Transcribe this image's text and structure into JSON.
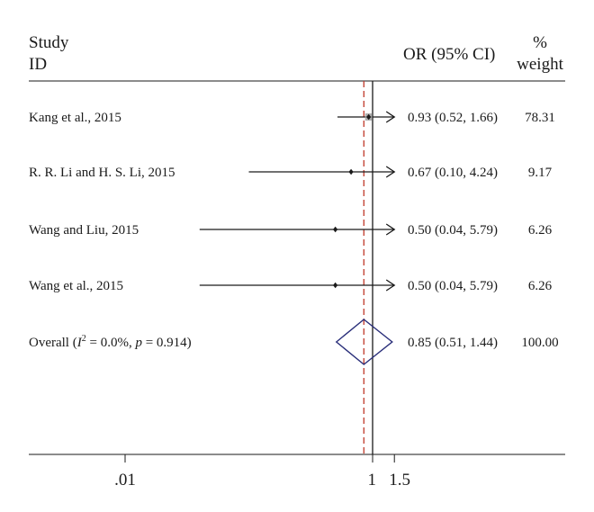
{
  "chart_data": {
    "type": "forest",
    "headers": {
      "study_line1": "Study",
      "study_line2": "ID",
      "or": "OR (95% CI)",
      "weight_line1": "%",
      "weight_line2": "weight"
    },
    "studies": [
      {
        "label": "Kang et al., 2015",
        "or": 0.93,
        "lower": 0.52,
        "upper": 1.66,
        "or_text": "0.93 (0.52, 1.66)",
        "weight_text": "78.31",
        "weight": 78.31
      },
      {
        "label": "R. R. Li and H. S. Li, 2015",
        "or": 0.67,
        "lower": 0.1,
        "upper": 4.24,
        "or_text": "0.67 (0.10, 4.24)",
        "weight_text": "9.17",
        "weight": 9.17
      },
      {
        "label": "Wang and Liu, 2015",
        "or": 0.5,
        "lower": 0.04,
        "upper": 5.79,
        "or_text": "0.50 (0.04, 5.79)",
        "weight_text": "6.26",
        "weight": 6.26
      },
      {
        "label": "Wang et al., 2015",
        "or": 0.5,
        "lower": 0.04,
        "upper": 5.79,
        "or_text": "0.50 (0.04, 5.79)",
        "weight_text": "6.26",
        "weight": 6.26
      }
    ],
    "overall": {
      "label_prefix": "Overall (",
      "i_symbol": "I",
      "i_sup": "2",
      "label_mid": " = 0.0%, ",
      "p_symbol": "p",
      "label_suffix": " = 0.914)",
      "or": 0.85,
      "lower": 0.51,
      "upper": 1.44,
      "or_text": "0.85 (0.51, 1.44)",
      "weight_text": "100.00"
    },
    "x_axis": {
      "scale": "log",
      "ticks": [
        0.01,
        1,
        1.5
      ],
      "tick_labels": [
        ".01",
        "1",
        "1.5"
      ],
      "display_max": 1.5
    },
    "reference_line": 1,
    "pooled_line": 0.85,
    "colors": {
      "text": "#1a1a1a",
      "lines": "#1a1a1a",
      "diamond": "#2a2f7a",
      "pooled_line": "#c0392b",
      "box": "#9a9a9a"
    }
  }
}
